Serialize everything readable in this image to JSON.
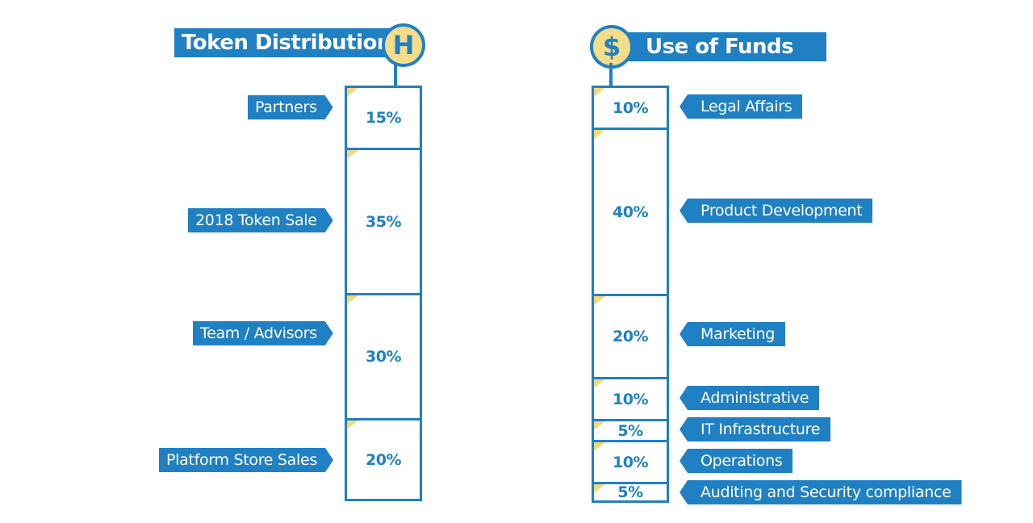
{
  "left": {
    "title": "Token Distribution",
    "logo_icon": "hcoin-logo-icon",
    "logo_glyph": "H",
    "chart_data": {
      "type": "bar",
      "stacked": true,
      "title": "Token Distribution",
      "categories": [
        "Partners",
        "2018 Token Sale",
        "Team / Advisors",
        "Platform Store Sales"
      ],
      "values": [
        15,
        35,
        30,
        20
      ],
      "labels": [
        "15%",
        "35%",
        "30%",
        "20%"
      ],
      "unit": "%"
    }
  },
  "right": {
    "title": "Use of Funds",
    "logo_icon": "dollar-icon",
    "logo_glyph": "$",
    "chart_data": {
      "type": "bar",
      "stacked": true,
      "title": "Use of Funds",
      "categories": [
        "Legal Affairs",
        "Product Development",
        "Marketing",
        "Administrative",
        "IT Infrastructure",
        "Operations",
        "Auditing and Security compliance"
      ],
      "values": [
        10,
        40,
        20,
        10,
        5,
        10,
        5
      ],
      "labels": [
        "10%",
        "40%",
        "20%",
        "10%",
        "5%",
        "10%",
        "5%"
      ],
      "unit": "%"
    }
  },
  "colors": {
    "accent": "#1f80c3",
    "corner": "#f1d97e",
    "logo_fill": "#f3dd88"
  }
}
